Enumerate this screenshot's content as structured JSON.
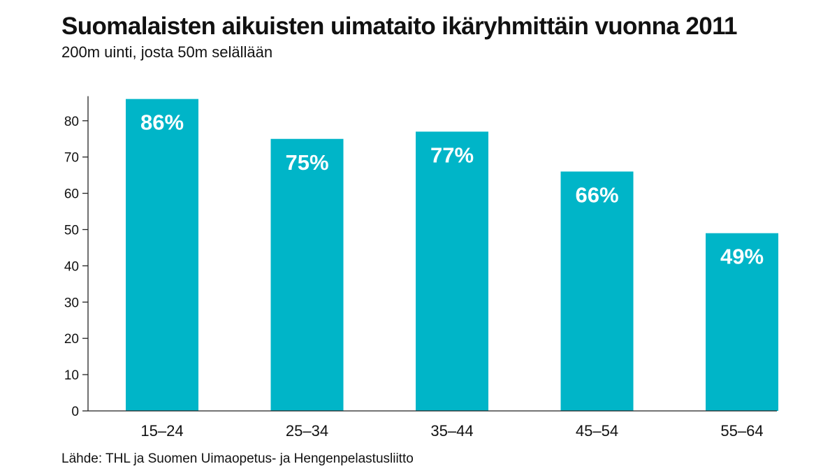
{
  "chart_data": {
    "type": "bar",
    "title": "Suomalaisten aikuisten uimataito ikäryhmittäin vuonna 2011",
    "subtitle": "200m uinti, josta 50m selällään",
    "source": "Lähde: THL ja Suomen Uimaopetus- ja Hengenpelastusliitto",
    "categories": [
      "15–24",
      "25–34",
      "35–44",
      "45–54",
      "55–64"
    ],
    "values": [
      86,
      75,
      77,
      66,
      49
    ],
    "data_labels": [
      "86%",
      "75%",
      "77%",
      "66%",
      "49%"
    ],
    "xlabel": "",
    "ylabel": "",
    "ylim": [
      0,
      86
    ],
    "yticks": [
      0,
      10,
      20,
      30,
      40,
      50,
      60,
      70,
      80
    ],
    "grid": false,
    "legend": "none",
    "bar_color": "#00b5c8"
  }
}
